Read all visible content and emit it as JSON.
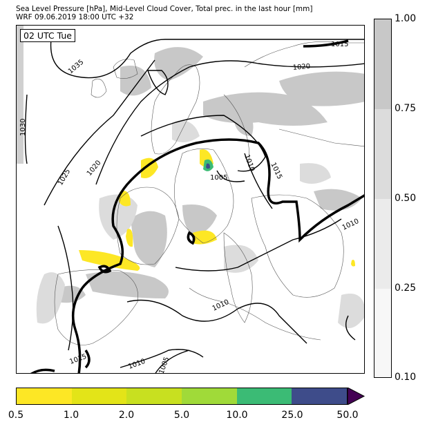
{
  "header": {
    "line1": "Sea Level Pressure [hPa], Mid-Level Cloud Cover, Total prec. in the last hour [mm]",
    "line2": "WRF 09.06.2019 18:00 UTC +32"
  },
  "map": {
    "time_label": "02 UTC Tue",
    "isobar_labels": [
      "1035",
      "1030",
      "1025",
      "1020",
      "1020",
      "1015",
      "1015",
      "1010",
      "1010",
      "1010",
      "1010",
      "1005",
      "1005",
      "1015"
    ]
  },
  "cloud_colorbar": {
    "ticks": [
      "1.00",
      "0.75",
      "0.50",
      "0.25",
      "0.10"
    ],
    "colors": [
      "#c8c8c8",
      "#dcdcdc",
      "#ebebeb",
      "#f7f7f7"
    ]
  },
  "precip_colorbar": {
    "ticks": [
      "0.5",
      "1.0",
      "2.0",
      "5.0",
      "10.0",
      "25.0",
      "50.0"
    ],
    "colors": [
      "#fde725",
      "#e3e418",
      "#c8e020",
      "#a0da39",
      "#3bbb75",
      "#3e4c8a",
      "#440154"
    ]
  }
}
